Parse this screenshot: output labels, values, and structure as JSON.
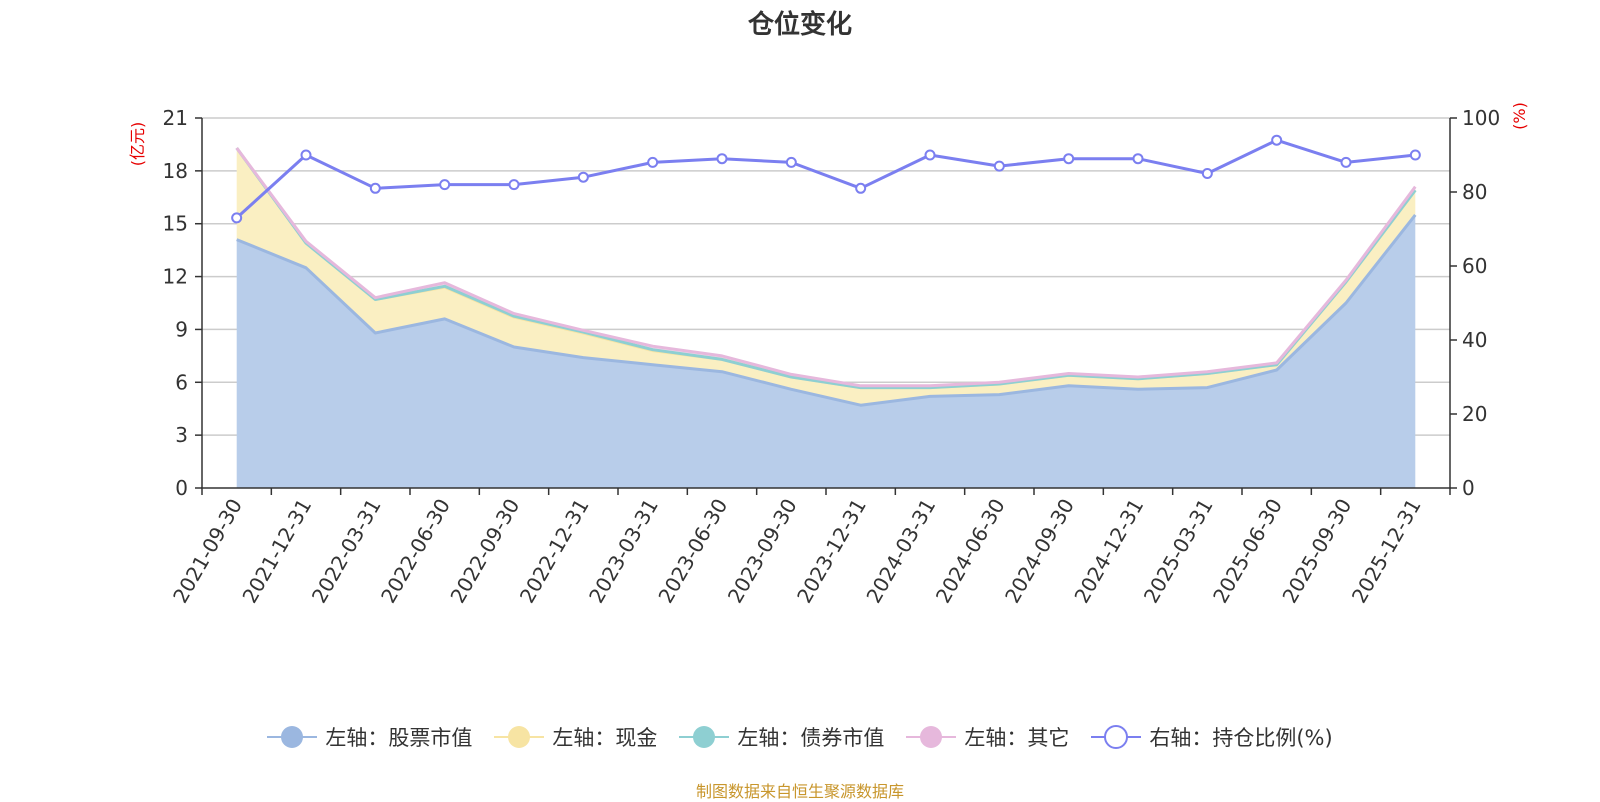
{
  "title": "仓位变化",
  "source": "制图数据来自恒生聚源数据库",
  "chart_data": {
    "type": "area",
    "categories": [
      "2021-09-30",
      "2021-12-31",
      "2022-03-31",
      "2022-06-30",
      "2022-09-30",
      "2022-12-31",
      "2023-03-31",
      "2023-06-30",
      "2023-09-30",
      "2023-12-31",
      "2024-03-31",
      "2024-06-30",
      "2024-09-30",
      "2024-12-31",
      "2025-03-31",
      "2025-06-30",
      "2025-09-30",
      "2025-12-31"
    ],
    "left_axis": {
      "label": "(亿元)",
      "min": 0,
      "max": 21,
      "ticks": [
        "0",
        "3",
        "6",
        "9",
        "12",
        "15",
        "18",
        "21"
      ]
    },
    "right_axis": {
      "label": "(%)",
      "min": 0,
      "max": 100,
      "ticks": [
        "0",
        "20",
        "40",
        "60",
        "80",
        "100"
      ]
    },
    "series": [
      {
        "name": "左轴：股票市值",
        "axis": "left",
        "stack": true,
        "color": "#9bb7e0",
        "fill": "#b8cdea",
        "values": [
          14.1,
          12.5,
          8.8,
          9.6,
          8.0,
          7.4,
          7.0,
          6.6,
          5.6,
          4.7,
          5.2,
          5.3,
          5.8,
          5.6,
          5.7,
          6.7,
          10.5,
          15.5
        ]
      },
      {
        "name": "左轴：现金",
        "axis": "left",
        "stack": true,
        "color": "#f7e4a3",
        "fill": "#faefc2",
        "values": [
          5.2,
          1.4,
          1.9,
          1.8,
          1.7,
          1.4,
          0.8,
          0.7,
          0.7,
          1.0,
          0.5,
          0.6,
          0.6,
          0.6,
          0.8,
          0.3,
          1.2,
          1.4
        ]
      },
      {
        "name": "左轴：债券市值",
        "axis": "left",
        "stack": true,
        "color": "#8ecfd2",
        "fill": "#bfe3e4",
        "values": [
          0,
          0,
          0,
          0.05,
          0.05,
          0.05,
          0.05,
          0,
          0,
          0,
          0,
          0,
          0,
          0,
          0,
          0,
          0,
          0
        ]
      },
      {
        "name": "左轴：其它",
        "axis": "left",
        "stack": true,
        "color": "#e6b8dc",
        "fill": "#f1d7ea",
        "values": [
          0,
          0.1,
          0.1,
          0.2,
          0.15,
          0.1,
          0.2,
          0.2,
          0.15,
          0.1,
          0.1,
          0.1,
          0.1,
          0.1,
          0.1,
          0.1,
          0.1,
          0.2
        ]
      },
      {
        "name": "右轴：持仓比例(%)",
        "axis": "right",
        "type": "line",
        "color": "#7b7ff0",
        "values": [
          73,
          90,
          81,
          82,
          82,
          84,
          88,
          89,
          88,
          81,
          90,
          87,
          89,
          89,
          85,
          94,
          88,
          90
        ]
      }
    ]
  }
}
